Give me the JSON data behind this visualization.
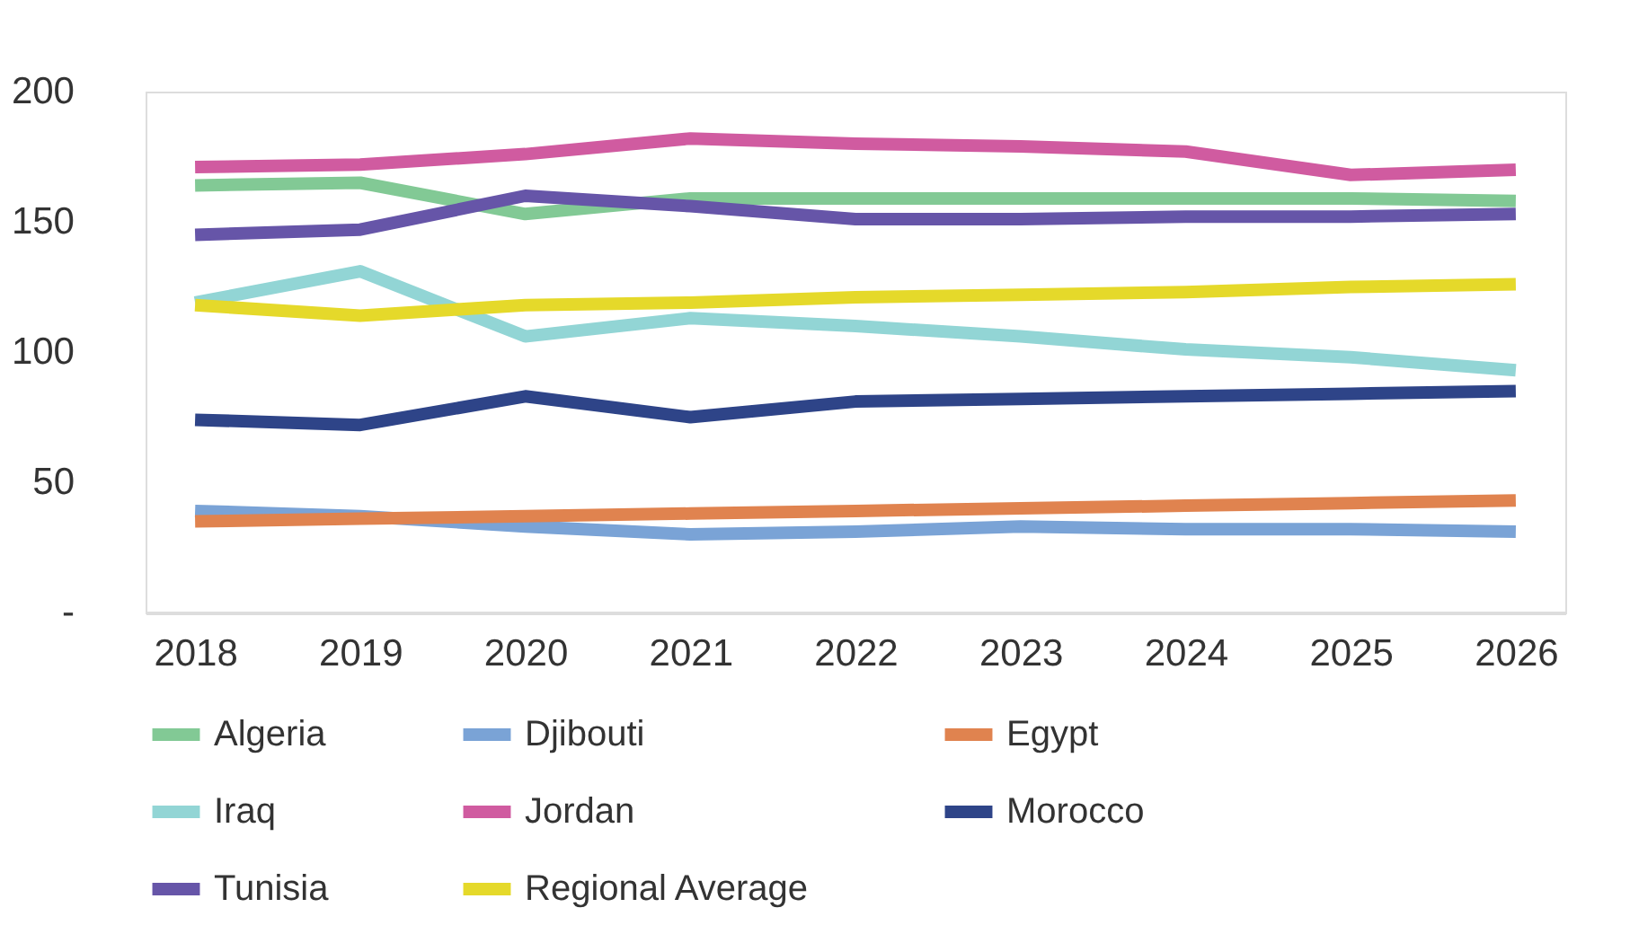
{
  "chart_data": {
    "type": "line",
    "categories": [
      "2018",
      "2019",
      "2020",
      "2021",
      "2022",
      "2023",
      "2024",
      "2025",
      "2026"
    ],
    "ylim": [
      0,
      200
    ],
    "yticks": [
      {
        "value": 0,
        "label": "-"
      },
      50,
      100,
      150,
      200
    ],
    "grid": false,
    "legend": "bottom",
    "marker": "none",
    "line_style": "solid",
    "series": [
      {
        "name": "Algeria",
        "color": "#82c995",
        "values": [
          164,
          165,
          153,
          159,
          159,
          159,
          159,
          159,
          158
        ]
      },
      {
        "name": "Djibouti",
        "color": "#7aa3d6",
        "values": [
          39,
          37,
          33,
          30,
          31,
          33,
          32,
          32,
          31
        ]
      },
      {
        "name": "Egypt",
        "color": "#e0834f",
        "values": [
          35,
          36,
          37,
          38,
          39,
          40,
          41,
          42,
          43
        ]
      },
      {
        "name": "Iraq",
        "color": "#92d5d5",
        "values": [
          119,
          131,
          106,
          113,
          110,
          106,
          101,
          98,
          93
        ]
      },
      {
        "name": "Jordan",
        "color": "#d05ba0",
        "values": [
          171,
          172,
          176,
          182,
          180,
          179,
          177,
          168,
          170
        ]
      },
      {
        "name": "Morocco",
        "color": "#2e4488",
        "values": [
          74,
          72,
          83,
          75,
          81,
          82,
          83,
          84,
          85
        ]
      },
      {
        "name": "Tunisia",
        "color": "#6655a8",
        "values": [
          145,
          147,
          160,
          156,
          151,
          151,
          152,
          152,
          153
        ]
      },
      {
        "name": "Regional Average",
        "color": "#e5d92a",
        "values": [
          118,
          114,
          118,
          119,
          121,
          122,
          123,
          125,
          126
        ]
      }
    ]
  }
}
